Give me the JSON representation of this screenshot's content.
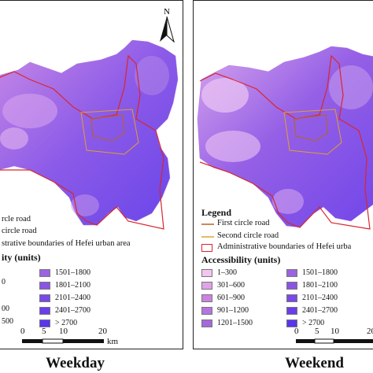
{
  "captions": {
    "left": "Weekday",
    "right": "Weekend"
  },
  "north_label": "N",
  "legend": {
    "title": "Legend",
    "first_road": "First circle road",
    "second_road": "Second circle road",
    "admin": "Administrative boundaries of Hefei urban area",
    "accessibility_title": "Accessibility (units)",
    "classes_left": [
      "1–300",
      "301–600",
      "601–900",
      "901–1200",
      "1201–1500"
    ],
    "classes_right": [
      "1501–1800",
      "1801–2100",
      "2101–2400",
      "2401–2700",
      "> 2700"
    ],
    "colors_left": [
      "#f3c6f0",
      "#e1a3e8",
      "#c884e0",
      "#b574de",
      "#a568dc"
    ],
    "colors_right": [
      "#9b63e0",
      "#8a55e4",
      "#7a4ae8",
      "#6a3fea",
      "#5a34ee"
    ],
    "left_panel_visible": {
      "first_road": "rcle road",
      "second_road": "circle road",
      "admin": "strative boundaries of Hefei urban area",
      "accessibility_title": "ity (units)",
      "classes_left": [
        "0",
        "00",
        "500"
      ]
    },
    "right_panel_visible": {
      "admin": "Administrative boundaries of Hefei urba"
    }
  },
  "scale": {
    "ticks": [
      "0",
      "5",
      "10",
      "20"
    ],
    "unit": "km"
  },
  "colors": {
    "admin_boundary": "#d9262c",
    "first_road": "#b5651d",
    "second_road": "#e0a030"
  }
}
